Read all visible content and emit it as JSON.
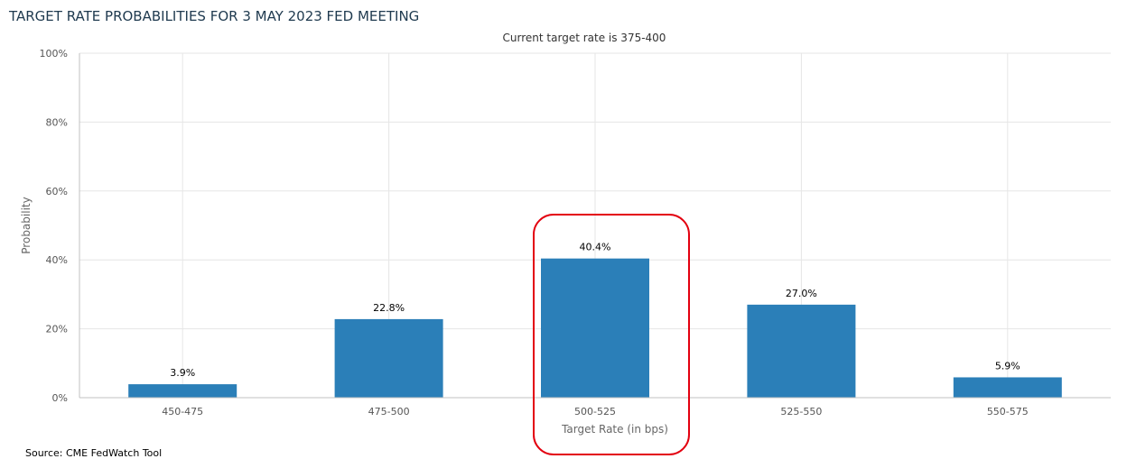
{
  "chart_data": {
    "type": "bar",
    "title": "TARGET RATE PROBABILITIES FOR 3 MAY 2023 FED MEETING",
    "subtitle": "Current target rate is 375-400",
    "xlabel": "Target Rate (in bps)",
    "ylabel": "Probability",
    "categories": [
      "450-475",
      "475-500",
      "500-525",
      "525-550",
      "550-575"
    ],
    "values": [
      3.9,
      22.8,
      40.4,
      27.0,
      5.9
    ],
    "value_labels": [
      "3.9%",
      "22.8%",
      "40.4%",
      "27.0%",
      "5.9%"
    ],
    "ylim": [
      0,
      100
    ],
    "yticks": [
      0,
      20,
      40,
      60,
      80,
      100
    ],
    "ytick_labels": [
      "0%",
      "20%",
      "40%",
      "60%",
      "80%",
      "100%"
    ],
    "grid": true,
    "legend": "none",
    "highlight_category": "500-525",
    "source": "Source: CME FedWatch Tool",
    "colors": {
      "bar": "#2b7fb8",
      "grid": "#e6e6e6",
      "highlight": "#e3000f",
      "title": "#1f3a4f"
    }
  }
}
